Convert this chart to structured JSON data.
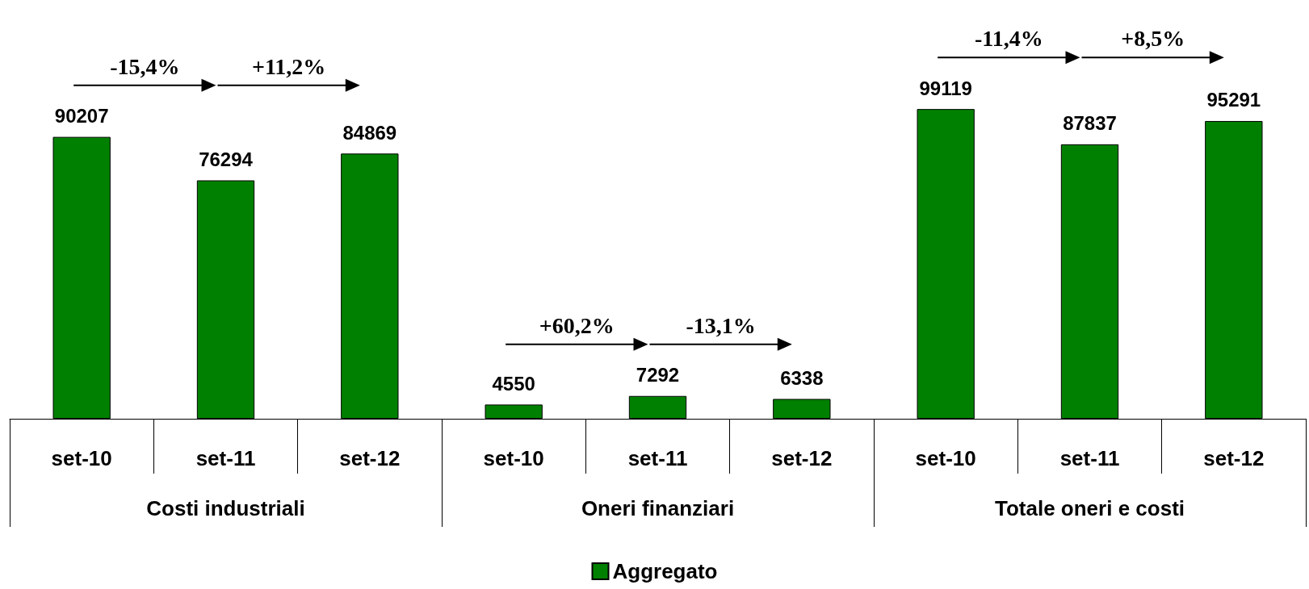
{
  "chart_data": {
    "type": "bar",
    "categories": [
      "set-10",
      "set-11",
      "set-12",
      "set-10",
      "set-11",
      "set-12",
      "set-10",
      "set-11",
      "set-12"
    ],
    "series": [
      {
        "name": "Aggregato",
        "color": "#008000",
        "values": [
          90207,
          76294,
          84869,
          4550,
          7292,
          6338,
          99119,
          87837,
          95291
        ]
      }
    ],
    "data_labels": true,
    "legend": "bottom",
    "annotations": [
      "-15,4%",
      "+11,2%",
      "+60,2%",
      "-13,1%",
      "-11,4%",
      "+8,5%",
      "Costi industriali",
      "Oneri finanziari",
      "Totale oneri e costi"
    ]
  }
}
